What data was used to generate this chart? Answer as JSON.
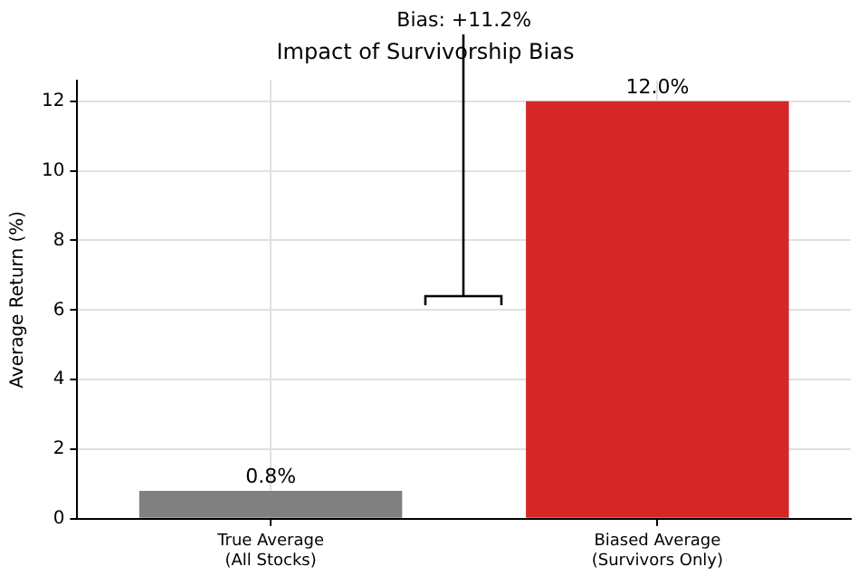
{
  "chart_data": {
    "type": "bar",
    "title": "Impact of Survivorship Bias",
    "ylabel": "Average Return (%)",
    "categories": [
      "True Average\n(All Stocks)",
      "Biased Average\n(Survivors Only)"
    ],
    "values": [
      0.8,
      12.0
    ],
    "colors": [
      "#808080",
      "#d62728"
    ],
    "value_labels": [
      "0.8%",
      "12.0%"
    ],
    "annotations": [
      "Bias: +11.2%"
    ],
    "ylim": [
      0,
      12.6
    ],
    "yticks": [
      0,
      2,
      4,
      6,
      8,
      10,
      12
    ],
    "grid": true,
    "legend": false
  }
}
